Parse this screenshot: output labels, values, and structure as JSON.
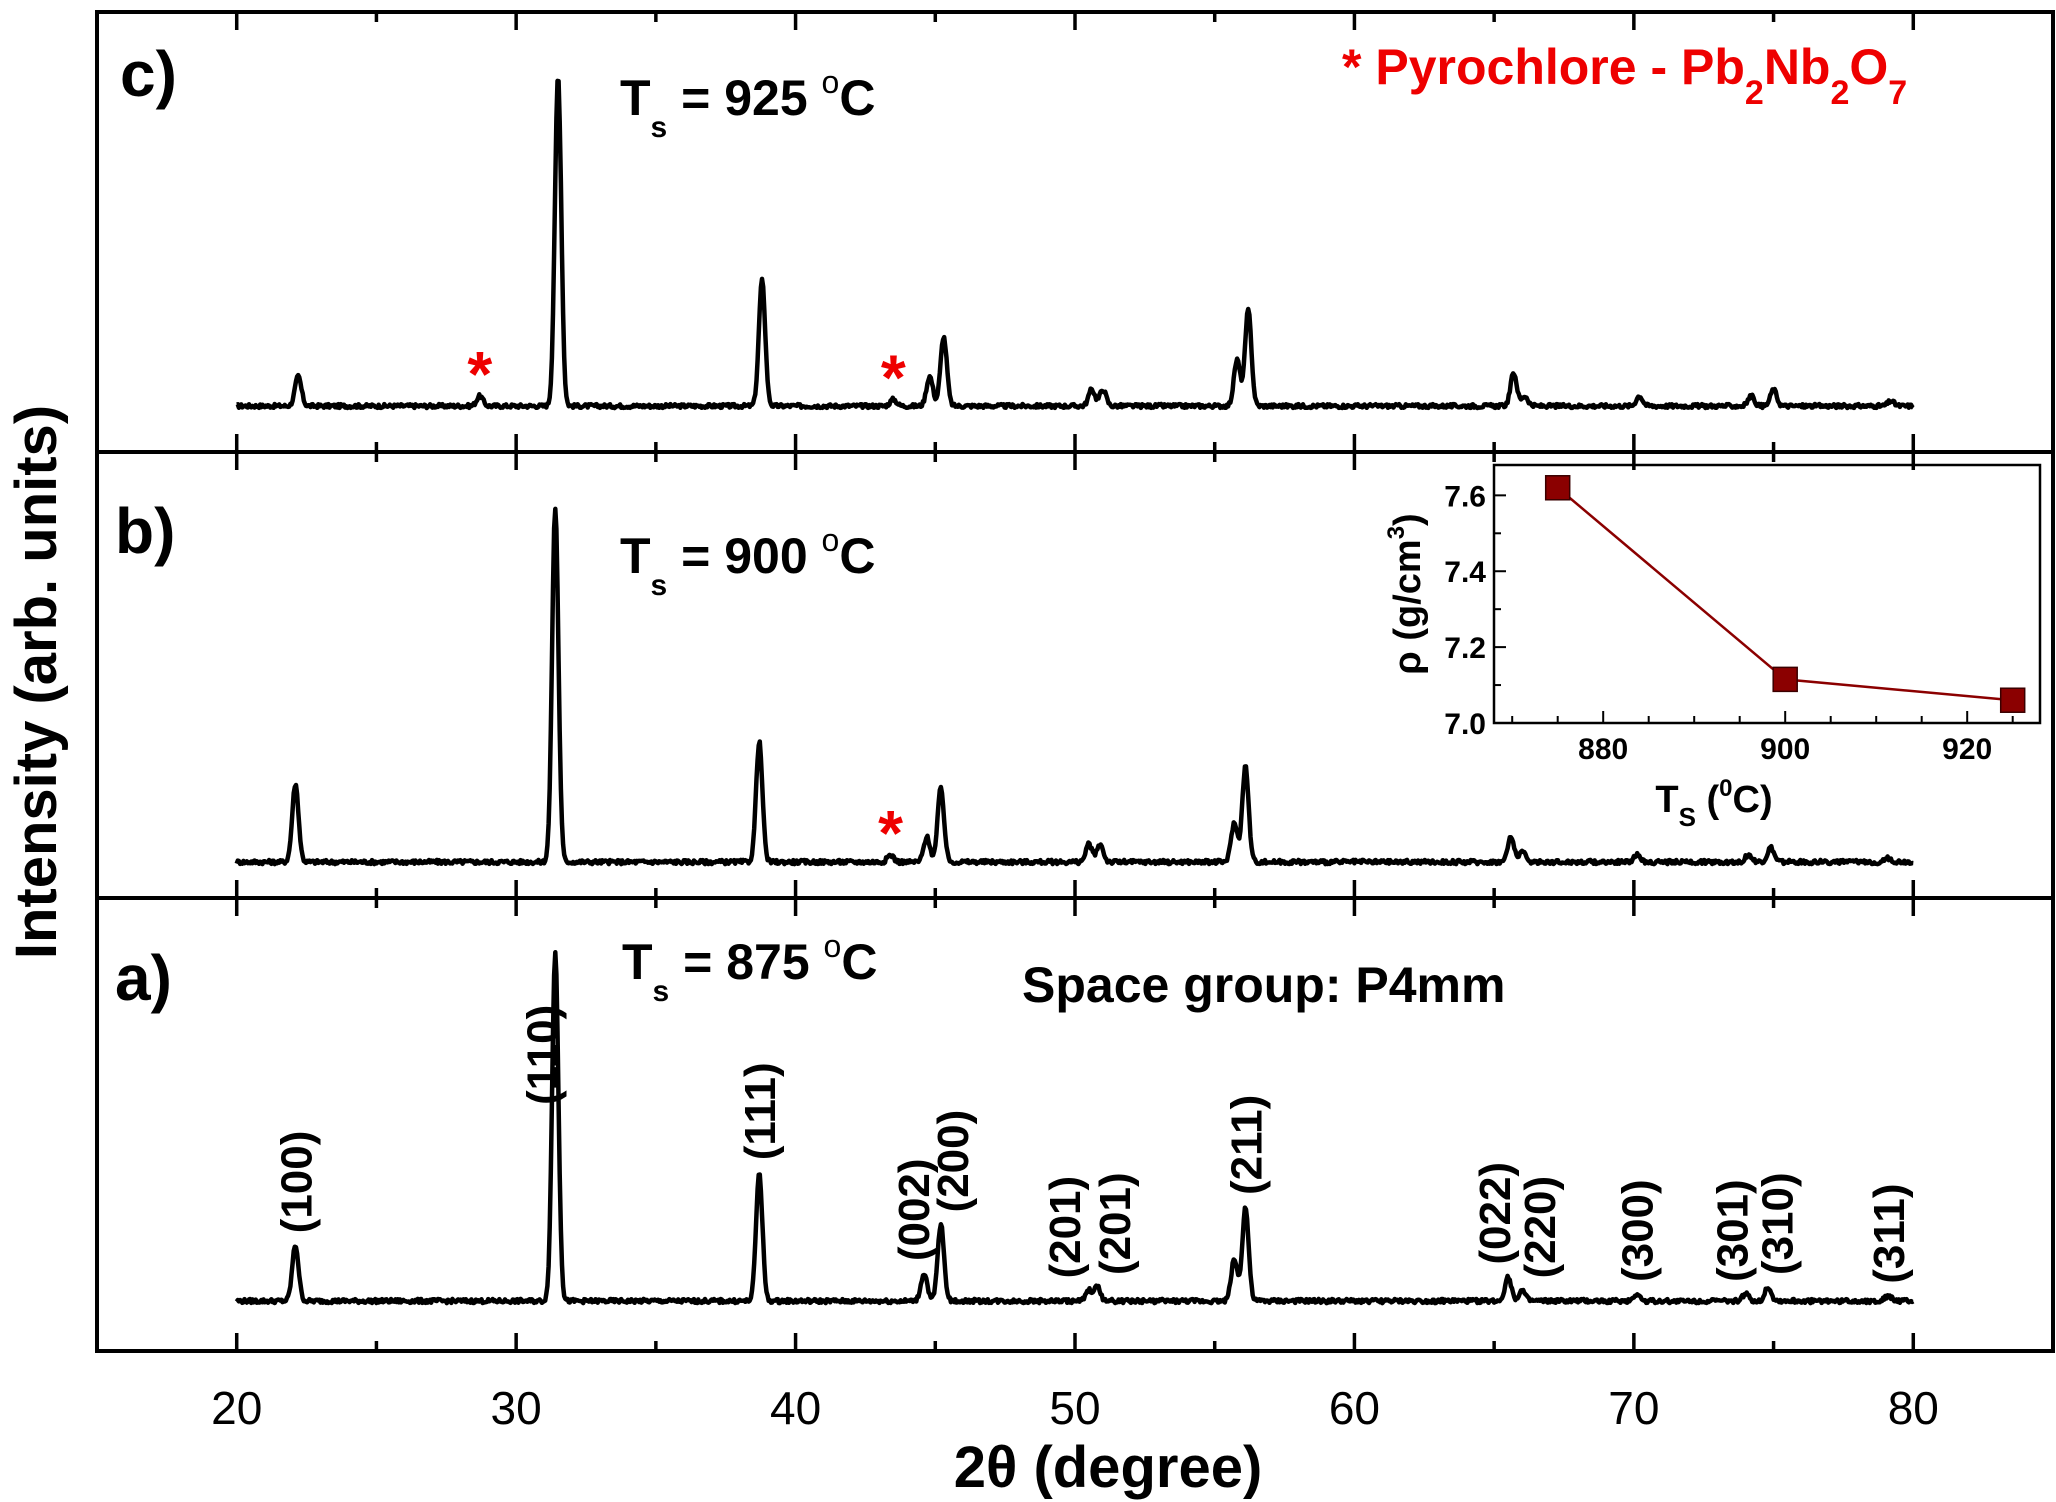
{
  "chart_data": {
    "type": "line",
    "x_min": 15,
    "x_max": 85,
    "xlabel": "2θ (degree)",
    "ylabel": "Intensity (arb. units)",
    "x_ticks": [
      20,
      30,
      40,
      50,
      60,
      70,
      80
    ],
    "legend_text": "* Pyrochlore - Pb",
    "legend_sub1": "2",
    "legend_mid": "Nb",
    "legend_sub2": "2",
    "legend_mid2": "O",
    "legend_sub3": "7",
    "space_group": "Space group: P4mm",
    "panels": [
      {
        "label": "c)",
        "temp_prefix": "T",
        "temp_sub": "s",
        "temp_value": " = 925 ",
        "temp_sup": "o",
        "temp_unit": "C",
        "scale": 1.0,
        "peaks": [
          {
            "x": 22.2,
            "h": 0.09
          },
          {
            "x": 28.7,
            "h": 0.03
          },
          {
            "x": 31.5,
            "h": 1.0
          },
          {
            "x": 38.8,
            "h": 0.38
          },
          {
            "x": 43.5,
            "h": 0.02
          },
          {
            "x": 44.8,
            "h": 0.09
          },
          {
            "x": 45.3,
            "h": 0.21
          },
          {
            "x": 50.6,
            "h": 0.05
          },
          {
            "x": 51.0,
            "h": 0.05
          },
          {
            "x": 55.8,
            "h": 0.14
          },
          {
            "x": 56.2,
            "h": 0.29
          },
          {
            "x": 65.7,
            "h": 0.1
          },
          {
            "x": 66.1,
            "h": 0.03
          },
          {
            "x": 70.2,
            "h": 0.03
          },
          {
            "x": 74.2,
            "h": 0.03
          },
          {
            "x": 75.0,
            "h": 0.05
          },
          {
            "x": 79.2,
            "h": 0.015
          }
        ],
        "stars": [
          28.7,
          43.5
        ]
      },
      {
        "label": "b)",
        "temp_prefix": "T",
        "temp_sub": "s",
        "temp_value": " = 900 ",
        "temp_sup": "o",
        "temp_unit": "C",
        "scale": 1.0,
        "peaks": [
          {
            "x": 22.1,
            "h": 0.22
          },
          {
            "x": 31.4,
            "h": 1.0
          },
          {
            "x": 38.7,
            "h": 0.34
          },
          {
            "x": 43.4,
            "h": 0.02
          },
          {
            "x": 44.7,
            "h": 0.07
          },
          {
            "x": 45.2,
            "h": 0.21
          },
          {
            "x": 50.5,
            "h": 0.05
          },
          {
            "x": 50.9,
            "h": 0.05
          },
          {
            "x": 55.7,
            "h": 0.11
          },
          {
            "x": 56.1,
            "h": 0.27
          },
          {
            "x": 65.6,
            "h": 0.07
          },
          {
            "x": 66.0,
            "h": 0.03
          },
          {
            "x": 70.1,
            "h": 0.02
          },
          {
            "x": 74.1,
            "h": 0.02
          },
          {
            "x": 74.9,
            "h": 0.04
          },
          {
            "x": 79.1,
            "h": 0.01
          }
        ],
        "stars": [
          43.4
        ]
      },
      {
        "label": "a)",
        "temp_prefix": "T",
        "temp_sub": "s",
        "temp_value": " = 875 ",
        "temp_sup": "o",
        "temp_unit": "C",
        "scale": 1.0,
        "peaks": [
          {
            "x": 22.1,
            "h": 0.16
          },
          {
            "x": 31.4,
            "h": 1.0
          },
          {
            "x": 38.7,
            "h": 0.37
          },
          {
            "x": 44.6,
            "h": 0.08
          },
          {
            "x": 45.2,
            "h": 0.22
          },
          {
            "x": 50.5,
            "h": 0.03
          },
          {
            "x": 50.8,
            "h": 0.04
          },
          {
            "x": 55.7,
            "h": 0.12
          },
          {
            "x": 56.1,
            "h": 0.27
          },
          {
            "x": 65.5,
            "h": 0.07
          },
          {
            "x": 66.0,
            "h": 0.03
          },
          {
            "x": 70.1,
            "h": 0.02
          },
          {
            "x": 74.0,
            "h": 0.02
          },
          {
            "x": 74.8,
            "h": 0.04
          },
          {
            "x": 79.1,
            "h": 0.015
          }
        ],
        "stars": []
      }
    ],
    "hkl_labels": [
      {
        "text": "(100)",
        "x": 22.1
      },
      {
        "text": "(110)",
        "x": 30.9
      },
      {
        "text": "(111)",
        "x": 38.7
      },
      {
        "text": "(002)",
        "x": 44.2
      },
      {
        "text": "(200)",
        "x": 45.6
      },
      {
        "text": "(201)",
        "x": 49.6
      },
      {
        "text": "(201)",
        "x": 51.4
      },
      {
        "text": "(211)",
        "x": 56.1
      },
      {
        "text": "(022)",
        "x": 65.0
      },
      {
        "text": "(220)",
        "x": 66.6
      },
      {
        "text": "(300)",
        "x": 70.1
      },
      {
        "text": "(301)",
        "x": 73.5
      },
      {
        "text": "(310)",
        "x": 75.1
      },
      {
        "text": "(311)",
        "x": 79.1
      }
    ],
    "inset": {
      "type": "line",
      "x": [
        875,
        900,
        925
      ],
      "y": [
        7.62,
        7.115,
        7.06
      ],
      "xlim": [
        868,
        928
      ],
      "ylim": [
        7.0,
        7.68
      ],
      "x_ticks": [
        880,
        900,
        920
      ],
      "y_ticks": [
        "7.0",
        "7.2",
        "7.4",
        "7.6"
      ],
      "xlabel_main": "T",
      "xlabel_sub": "S",
      "xlabel_unit_open": " (",
      "xlabel_sup": "0",
      "xlabel_unit_close": "C)",
      "ylabel_main": "ρ (g/cm",
      "ylabel_sup": "3",
      "ylabel_close": ")",
      "marker_color": "#8b0000",
      "line_color": "#8b0000"
    }
  }
}
